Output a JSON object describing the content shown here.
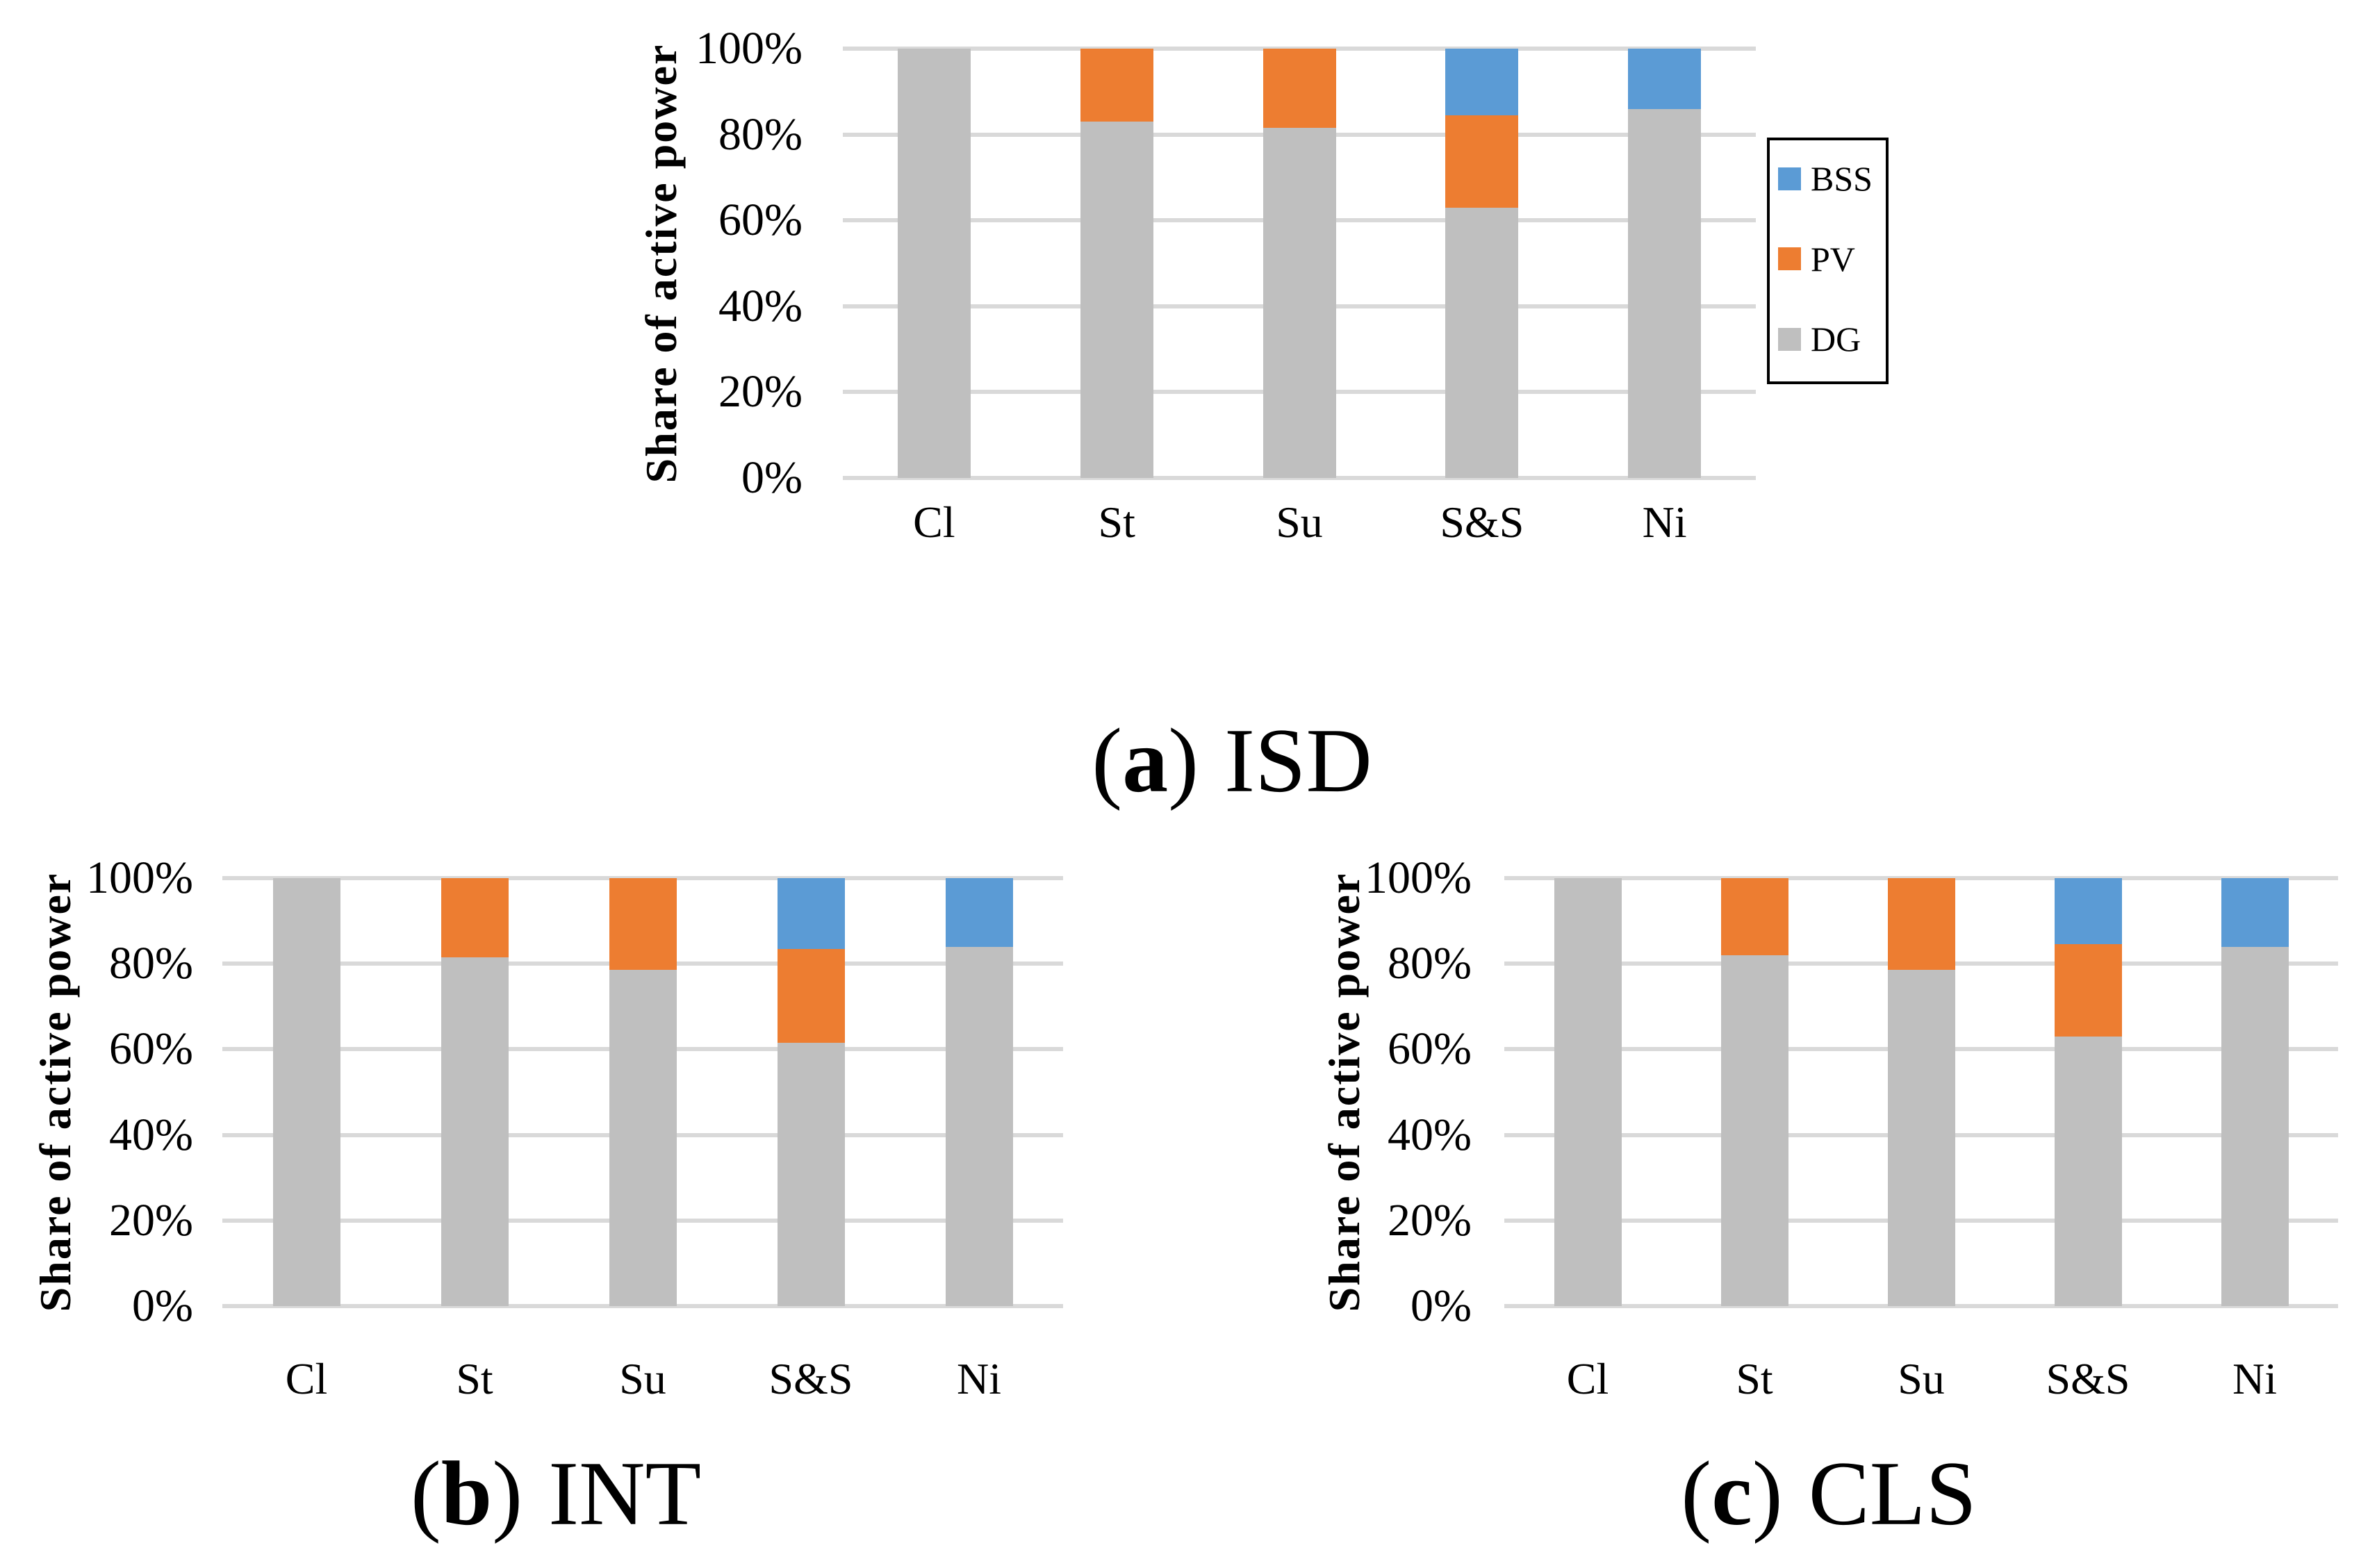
{
  "figure": {
    "axes": {
      "y_title": "Share of active power",
      "y_ticks": [
        "100%",
        "80%",
        "60%",
        "40%",
        "20%",
        "0%"
      ],
      "x_categories": [
        "Cl",
        "St",
        "Su",
        "S&S",
        "Ni"
      ]
    },
    "legend": {
      "position": "right",
      "items": [
        {
          "label": "BSS",
          "color": "#5B9BD5"
        },
        {
          "label": "PV",
          "color": "#ED7D31"
        },
        {
          "label": "DG",
          "color": "#BFBFBF"
        }
      ]
    },
    "captions": [
      {
        "open": "(",
        "letter": "a",
        "close": ")",
        "title": "ISD"
      },
      {
        "open": "(",
        "letter": "b",
        "close": ")",
        "title": "INT"
      },
      {
        "open": "(",
        "letter": "c",
        "close": ")",
        "title": "CLS"
      }
    ],
    "colors": {
      "gridline": "#D9D9D9",
      "bss": "#5B9BD5",
      "pv": "#ED7D31",
      "dg": "#BFBFBF",
      "text": "#000000",
      "background": "#FFFFFF"
    }
  },
  "chart_data": [
    {
      "id": "a",
      "type": "bar",
      "stacked": true,
      "caption": "(a) ISD",
      "ylabel": "Share of active power",
      "ylim": [
        0,
        100
      ],
      "y_tick_format": "percent",
      "grid": true,
      "legend_position": "right",
      "categories": [
        "Cl",
        "St",
        "Su",
        "S&S",
        "Ni"
      ],
      "series": [
        {
          "name": "DG",
          "color": "#BFBFBF",
          "values": [
            100,
            83,
            81.5,
            63,
            86
          ]
        },
        {
          "name": "PV",
          "color": "#ED7D31",
          "values": [
            0,
            17,
            18.5,
            21.5,
            0
          ]
        },
        {
          "name": "BSS",
          "color": "#5B9BD5",
          "values": [
            0,
            0,
            0,
            15.5,
            14
          ]
        }
      ]
    },
    {
      "id": "b",
      "type": "bar",
      "stacked": true,
      "caption": "(b) INT",
      "ylabel": "Share of active power",
      "ylim": [
        0,
        100
      ],
      "y_tick_format": "percent",
      "grid": true,
      "legend_position": "none",
      "categories": [
        "Cl",
        "St",
        "Su",
        "S&S",
        "Ni"
      ],
      "series": [
        {
          "name": "DG",
          "color": "#BFBFBF",
          "values": [
            100,
            81.5,
            78.5,
            61.5,
            84
          ]
        },
        {
          "name": "PV",
          "color": "#ED7D31",
          "values": [
            0,
            18.5,
            21.5,
            22,
            0
          ]
        },
        {
          "name": "BSS",
          "color": "#5B9BD5",
          "values": [
            0,
            0,
            0,
            16.5,
            16
          ]
        }
      ]
    },
    {
      "id": "c",
      "type": "bar",
      "stacked": true,
      "caption": "(c) CLS",
      "ylabel": "Share of active power",
      "ylim": [
        0,
        100
      ],
      "y_tick_format": "percent",
      "grid": true,
      "legend_position": "none",
      "categories": [
        "Cl",
        "St",
        "Su",
        "S&S",
        "Ni"
      ],
      "series": [
        {
          "name": "DG",
          "color": "#BFBFBF",
          "values": [
            100,
            82,
            78.5,
            63,
            84
          ]
        },
        {
          "name": "PV",
          "color": "#ED7D31",
          "values": [
            0,
            18,
            21.5,
            21.5,
            0
          ]
        },
        {
          "name": "BSS",
          "color": "#5B9BD5",
          "values": [
            0,
            0,
            0,
            15.5,
            16
          ]
        }
      ]
    }
  ]
}
